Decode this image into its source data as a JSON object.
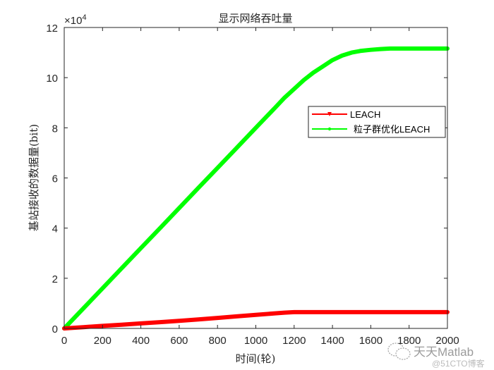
{
  "chart_data": {
    "type": "line",
    "title": "显示网络吞吐量",
    "xlabel": "时间(轮)",
    "ylabel": "基站接收的数据量(bit)",
    "y_exponent_label": "×10",
    "y_exponent_power": "4",
    "xlim": [
      0,
      2000
    ],
    "ylim": [
      0,
      12
    ],
    "y_scale_multiplier": 10000,
    "x_ticks": [
      0,
      200,
      400,
      600,
      800,
      1000,
      1200,
      1400,
      1600,
      1800,
      2000
    ],
    "y_ticks": [
      0,
      2,
      4,
      6,
      8,
      10,
      12
    ],
    "grid": false,
    "legend_position": "upper right (inside, mid-right)",
    "x": [
      0,
      100,
      200,
      300,
      400,
      500,
      600,
      700,
      800,
      900,
      1000,
      1100,
      1150,
      1200,
      1250,
      1300,
      1350,
      1400,
      1450,
      1500,
      1550,
      1600,
      1650,
      1700,
      1800,
      1900,
      2000
    ],
    "series": [
      {
        "name": "LEACH",
        "color": "#ff0000",
        "marker": "down-triangle",
        "values": [
          0,
          0.05,
          0.1,
          0.15,
          0.2,
          0.25,
          0.3,
          0.36,
          0.42,
          0.48,
          0.54,
          0.6,
          0.63,
          0.65,
          0.65,
          0.65,
          0.65,
          0.65,
          0.65,
          0.65,
          0.65,
          0.65,
          0.65,
          0.65,
          0.65,
          0.65,
          0.65
        ]
      },
      {
        "name": "粒子群优化LEACH",
        "color": "#00ff00",
        "marker": "dot",
        "values": [
          0,
          0.8,
          1.6,
          2.4,
          3.2,
          4.0,
          4.8,
          5.6,
          6.4,
          7.2,
          8.0,
          8.8,
          9.2,
          9.55,
          9.9,
          10.2,
          10.45,
          10.7,
          10.88,
          11.0,
          11.07,
          11.11,
          11.14,
          11.16,
          11.16,
          11.16,
          11.16
        ]
      }
    ]
  },
  "watermark": {
    "line1": "天天Matlab",
    "line2": "@51CTO博客"
  }
}
